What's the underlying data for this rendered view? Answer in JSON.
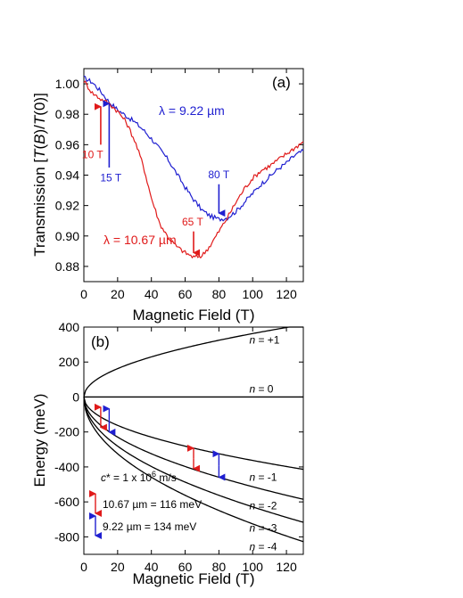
{
  "chart_data": [
    {
      "type": "line",
      "panel_label": "(a)",
      "xlabel": "Magnetic Field (T)",
      "ylabel": "Transmission [T(B)/T(0)]",
      "xlim": [
        0,
        130
      ],
      "ylim": [
        0.87,
        1.01
      ],
      "xticks": [
        "0",
        "20",
        "40",
        "60",
        "80",
        "100",
        "120"
      ],
      "yticks": [
        "0.88",
        "0.90",
        "0.92",
        "0.94",
        "0.96",
        "0.98",
        "1.00"
      ],
      "grid": false,
      "series": [
        {
          "name": "λ = 9.22 µm",
          "color": "#1f1fd0",
          "x": [
            0,
            5,
            10,
            15,
            20,
            25,
            30,
            35,
            40,
            45,
            50,
            55,
            60,
            65,
            70,
            75,
            80,
            85,
            90,
            95,
            100,
            105,
            110,
            115,
            120,
            125,
            130
          ],
          "y": [
            1.004,
            1.001,
            0.995,
            0.988,
            0.983,
            0.979,
            0.975,
            0.97,
            0.964,
            0.957,
            0.95,
            0.941,
            0.932,
            0.924,
            0.917,
            0.913,
            0.911,
            0.912,
            0.916,
            0.922,
            0.928,
            0.934,
            0.939,
            0.944,
            0.948,
            0.953,
            0.956
          ]
        },
        {
          "name": "λ = 10.67 µm",
          "color": "#e01a1a",
          "x": [
            0,
            5,
            10,
            15,
            20,
            25,
            30,
            35,
            40,
            45,
            50,
            55,
            60,
            65,
            70,
            75,
            80,
            85,
            90,
            95,
            100,
            105,
            110,
            115,
            120,
            125,
            130
          ],
          "y": [
            1.002,
            0.994,
            0.99,
            0.987,
            0.982,
            0.975,
            0.963,
            0.947,
            0.925,
            0.908,
            0.899,
            0.893,
            0.889,
            0.886,
            0.887,
            0.894,
            0.903,
            0.912,
            0.922,
            0.931,
            0.938,
            0.943,
            0.946,
            0.95,
            0.954,
            0.958,
            0.962
          ]
        }
      ],
      "annotations": [
        {
          "text": "10 T",
          "x": 10,
          "color": "#e01a1a"
        },
        {
          "text": "15 T",
          "x": 15,
          "color": "#1f1fd0"
        },
        {
          "text": "80 T",
          "x": 80,
          "color": "#1f1fd0"
        },
        {
          "text": "65 T",
          "x": 65,
          "color": "#e01a1a"
        }
      ]
    },
    {
      "type": "line",
      "panel_label": "(b)",
      "xlabel": "Magnetic Field (T)",
      "ylabel": "Energy (meV)",
      "xlim": [
        0,
        130
      ],
      "ylim": [
        -900,
        400
      ],
      "xticks": [
        "0",
        "20",
        "40",
        "60",
        "80",
        "100",
        "120"
      ],
      "yticks": [
        "400",
        "200",
        "0",
        "-200",
        "-400",
        "-600",
        "-800"
      ],
      "grid": false,
      "sqrt_coefficient_meV_per_sqrtT": 36.29,
      "series": [
        {
          "name": "n = +1",
          "label_prefix": "n",
          "label_value": " = +1",
          "index": 1,
          "sign": 1
        },
        {
          "name": "n = 0",
          "label_prefix": "n",
          "label_value": " = 0",
          "index": 0,
          "sign": 1
        },
        {
          "name": "n = -1",
          "label_prefix": "n",
          "label_value": " = -1",
          "index": 1,
          "sign": -1
        },
        {
          "name": "n = -2",
          "label_prefix": "n",
          "label_value": " = -2",
          "index": 2,
          "sign": -1
        },
        {
          "name": "n = -3",
          "label_prefix": "n",
          "label_value": " = -3",
          "index": 3,
          "sign": -1
        },
        {
          "name": "n = -4",
          "label_prefix": "n",
          "label_value": " = -4",
          "index": 4,
          "sign": -1
        }
      ],
      "velocity_label": {
        "prefix": "c* = 1 x 10",
        "exponent": "6",
        "suffix": " m/s"
      },
      "legend": [
        {
          "text": "10.67 µm = 116 meV",
          "color": "#e01a1a"
        },
        {
          "text": "9.22 µm = 134 meV",
          "color": "#1f1fd0"
        }
      ],
      "markers": [
        {
          "x": 10,
          "from": -58,
          "to": -174,
          "color": "#e01a1a"
        },
        {
          "x": 15,
          "from": -67,
          "to": -201,
          "color": "#1f1fd0"
        },
        {
          "x": 65,
          "from": -293,
          "to": -409,
          "color": "#e01a1a"
        },
        {
          "x": 80,
          "from": -325,
          "to": -459,
          "color": "#1f1fd0"
        }
      ]
    }
  ]
}
